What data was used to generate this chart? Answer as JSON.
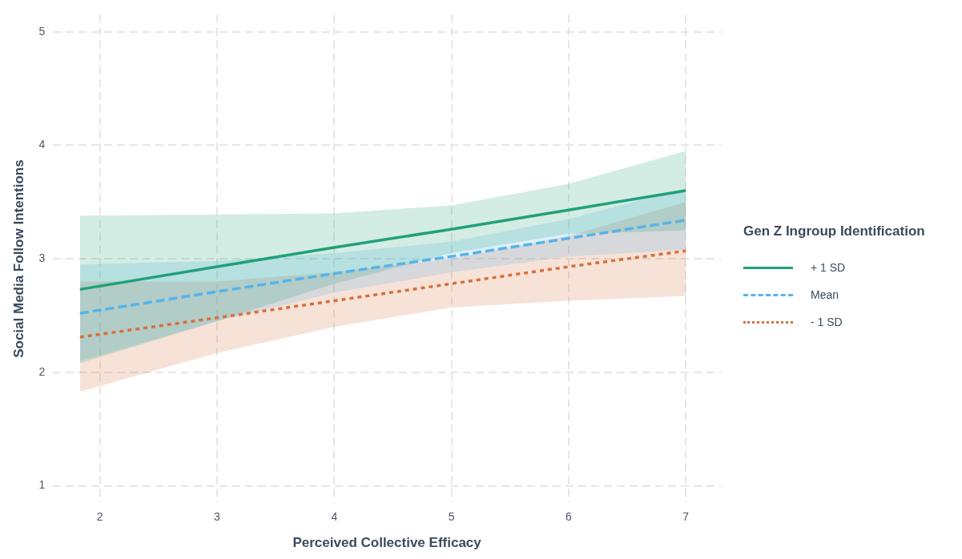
{
  "chart_data": {
    "type": "line",
    "xlabel": "Perceived Collective Efficacy",
    "ylabel": "Social Media Follow Intentions",
    "legend_title": "Gen Z Ingroup Identification",
    "legend": "right",
    "grid": true,
    "marker": "none",
    "x": [
      1.83,
      3,
      4,
      5,
      6,
      7
    ],
    "xlim": [
      1.6,
      7.3
    ],
    "xticks": [
      2,
      3,
      4,
      5,
      6,
      7
    ],
    "ylim": [
      0.85,
      5.15
    ],
    "yticks": [
      1,
      2,
      3,
      4,
      5
    ],
    "series": [
      {
        "name": "+ 1 SD",
        "color": "#21a07a",
        "line_style": "solid",
        "values": [
          2.73,
          2.93,
          3.1,
          3.26,
          3.43,
          3.6
        ],
        "lower": [
          2.08,
          2.45,
          2.78,
          3.05,
          3.22,
          3.25
        ],
        "upper": [
          3.38,
          3.39,
          3.4,
          3.47,
          3.66,
          3.95
        ]
      },
      {
        "name": "Mean",
        "color": "#56b4e9",
        "line_style": "dashed",
        "values": [
          2.52,
          2.71,
          2.87,
          3.02,
          3.18,
          3.34
        ],
        "lower": [
          2.1,
          2.45,
          2.7,
          2.88,
          3.02,
          3.08
        ],
        "upper": [
          2.95,
          2.98,
          3.05,
          3.15,
          3.35,
          3.62
        ]
      },
      {
        "name": "- 1 SD",
        "color": "#d9703a",
        "line_style": "dotted",
        "values": [
          2.31,
          2.48,
          2.63,
          2.78,
          2.93,
          3.07
        ],
        "lower": [
          1.83,
          2.17,
          2.4,
          2.57,
          2.63,
          2.67
        ],
        "upper": [
          2.8,
          2.8,
          2.88,
          3.0,
          3.2,
          3.5
        ]
      }
    ]
  }
}
